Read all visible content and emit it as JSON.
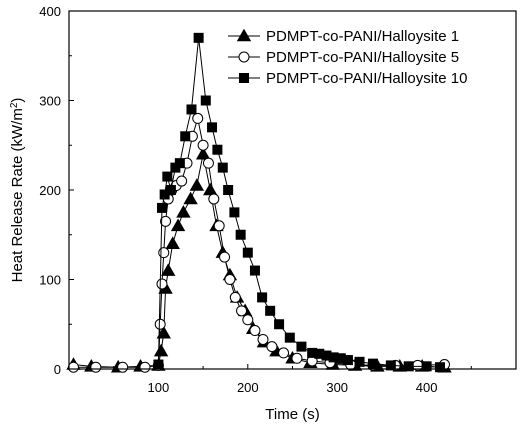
{
  "chart_data": {
    "type": "line",
    "xlabel": "Time (s)",
    "ylabel_main": "Heat Release Rate (kW/m",
    "ylabel_sup": "2",
    "ylabel_close": ")",
    "xlim": [
      0,
      500
    ],
    "ylim": [
      0,
      400
    ],
    "xticks": [
      100,
      200,
      300,
      400
    ],
    "yticks": [
      0,
      100,
      200,
      300,
      400
    ],
    "legend_position": "top-right",
    "series": [
      {
        "name": "PDMPT-co-PANI/Halloysite 1",
        "marker": "triangle-filled",
        "x": [
          5,
          25,
          55,
          80,
          100,
          103,
          106,
          108,
          111,
          116,
          122,
          128,
          136,
          143,
          150,
          158,
          165,
          172,
          180,
          188,
          197,
          206,
          218,
          232,
          250,
          270,
          295,
          320,
          345,
          370,
          395,
          420
        ],
        "y": [
          5,
          3,
          2,
          3,
          4,
          20,
          40,
          90,
          110,
          140,
          160,
          175,
          190,
          205,
          240,
          200,
          160,
          130,
          105,
          80,
          65,
          45,
          30,
          20,
          12,
          7,
          5,
          4,
          3,
          3,
          3,
          2
        ]
      },
      {
        "name": "PDMPT-co-PANI/Halloysite 5",
        "marker": "circle-open",
        "x": [
          5,
          30,
          60,
          85,
          100,
          102,
          104,
          106,
          108,
          111,
          115,
          120,
          126,
          132,
          138,
          144,
          150,
          156,
          162,
          168,
          174,
          180,
          186,
          193,
          200,
          208,
          217,
          227,
          240,
          255,
          272,
          292,
          315,
          340,
          365,
          390,
          420
        ],
        "y": [
          2,
          2,
          2,
          2,
          4,
          50,
          95,
          130,
          165,
          190,
          200,
          205,
          210,
          230,
          260,
          280,
          250,
          230,
          190,
          160,
          125,
          100,
          80,
          65,
          55,
          43,
          33,
          25,
          18,
          12,
          9,
          7,
          5,
          4,
          4,
          4,
          5
        ]
      },
      {
        "name": "PDMPT-co-PANI/Halloysite 10",
        "marker": "square-filled",
        "x": [
          100,
          104,
          107,
          110,
          114,
          119,
          124,
          130,
          137,
          145,
          153,
          160,
          166,
          172,
          178,
          185,
          192,
          200,
          208,
          216,
          225,
          235,
          247,
          260,
          272,
          280,
          288,
          296,
          304,
          312,
          325,
          340,
          360,
          380,
          400,
          415
        ],
        "y": [
          5,
          180,
          195,
          215,
          200,
          225,
          230,
          260,
          290,
          370,
          300,
          270,
          245,
          225,
          200,
          175,
          150,
          130,
          110,
          80,
          65,
          50,
          35,
          25,
          18,
          17,
          15,
          13,
          12,
          10,
          8,
          6,
          4,
          3,
          3,
          2
        ]
      }
    ]
  }
}
